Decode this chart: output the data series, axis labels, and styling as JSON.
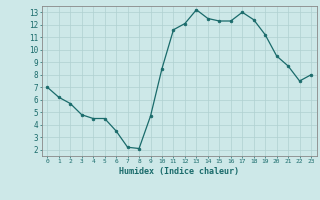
{
  "x": [
    0,
    1,
    2,
    3,
    4,
    5,
    6,
    7,
    8,
    9,
    10,
    11,
    12,
    13,
    14,
    15,
    16,
    17,
    18,
    19,
    20,
    21,
    22,
    23
  ],
  "y": [
    7.0,
    6.2,
    5.7,
    4.8,
    4.5,
    4.5,
    3.5,
    2.2,
    2.1,
    4.7,
    8.5,
    11.6,
    12.1,
    13.2,
    12.5,
    12.3,
    12.3,
    13.0,
    12.4,
    11.2,
    9.5,
    8.7,
    7.5,
    8.0
  ],
  "xlim": [
    -0.5,
    23.5
  ],
  "ylim": [
    1.5,
    13.5
  ],
  "yticks": [
    2,
    3,
    4,
    5,
    6,
    7,
    8,
    9,
    10,
    11,
    12,
    13
  ],
  "xticks": [
    0,
    1,
    2,
    3,
    4,
    5,
    6,
    7,
    8,
    9,
    10,
    11,
    12,
    13,
    14,
    15,
    16,
    17,
    18,
    19,
    20,
    21,
    22,
    23
  ],
  "xlabel": "Humidex (Indice chaleur)",
  "line_color": "#1a6b6b",
  "marker_color": "#1a6b6b",
  "bg_color": "#cde8e8",
  "grid_color": "#b0d0d0",
  "border_color": "#888888",
  "tick_label_color": "#1a6b6b",
  "xlabel_color": "#1a6b6b"
}
